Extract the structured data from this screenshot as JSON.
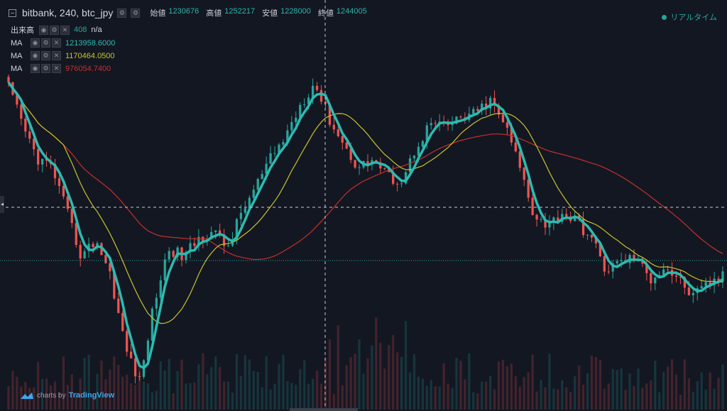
{
  "header": {
    "title": "bitbank, 240, btc_jpy",
    "ohlc": [
      {
        "label": "始値",
        "value": "1230676"
      },
      {
        "label": "高値",
        "value": "1252217"
      },
      {
        "label": "安値",
        "value": "1228000"
      },
      {
        "label": "終値",
        "value": "1244005"
      }
    ]
  },
  "volume_indicator": {
    "label": "出来高",
    "value": "408",
    "extra": "n/a",
    "value_color": "#26a69a"
  },
  "ma_indicators": [
    {
      "label": "MA",
      "value": "1213958.6000",
      "color": "#2bbbb2"
    },
    {
      "label": "MA",
      "value": "1170464.0500",
      "color": "#c9c32c"
    },
    {
      "label": "MA",
      "value": "976054.7400",
      "color": "#c4302b"
    }
  ],
  "realtime_label": "リアルタイム",
  "watermark": {
    "prefix": "charts by",
    "brand": "TradingView"
  },
  "colors": {
    "up": "#26a69a",
    "down": "#ef5350",
    "background": "#131722",
    "crosshair": "#c8cbd3"
  },
  "chart_data": {
    "type": "candlestick",
    "symbol": "btc_jpy",
    "exchange": "bitbank",
    "interval": "240",
    "candle_count": 170,
    "approximate_close_path": [
      1250000,
      1205000,
      1170000,
      1160000,
      1110000,
      1060000,
      1080000,
      1040000,
      960000,
      920000,
      1010000,
      1070000,
      1060000,
      1080000,
      1090000,
      1070000,
      1110000,
      1140000,
      1170000,
      1195000,
      1230000,
      1255000,
      1215000,
      1185000,
      1160000,
      1170000,
      1150000,
      1145000,
      1185000,
      1210000,
      1205000,
      1215000,
      1220000,
      1235000,
      1210000,
      1165000,
      1110000,
      1095000,
      1110000,
      1100000,
      1080000,
      1045000,
      1055000,
      1060000,
      1035000,
      1050000,
      1035000,
      1015000,
      1030000,
      1038000
    ],
    "moving_averages": [
      {
        "name": "MA",
        "last_value": 1213958.6,
        "color": "#2bbbb2"
      },
      {
        "name": "MA",
        "last_value": 1170464.05,
        "color": "#c9c32c"
      },
      {
        "name": "MA",
        "last_value": 976054.74,
        "color": "#c4302b"
      }
    ],
    "volume": {
      "shown": true,
      "last_value": 408
    },
    "grid": false
  }
}
